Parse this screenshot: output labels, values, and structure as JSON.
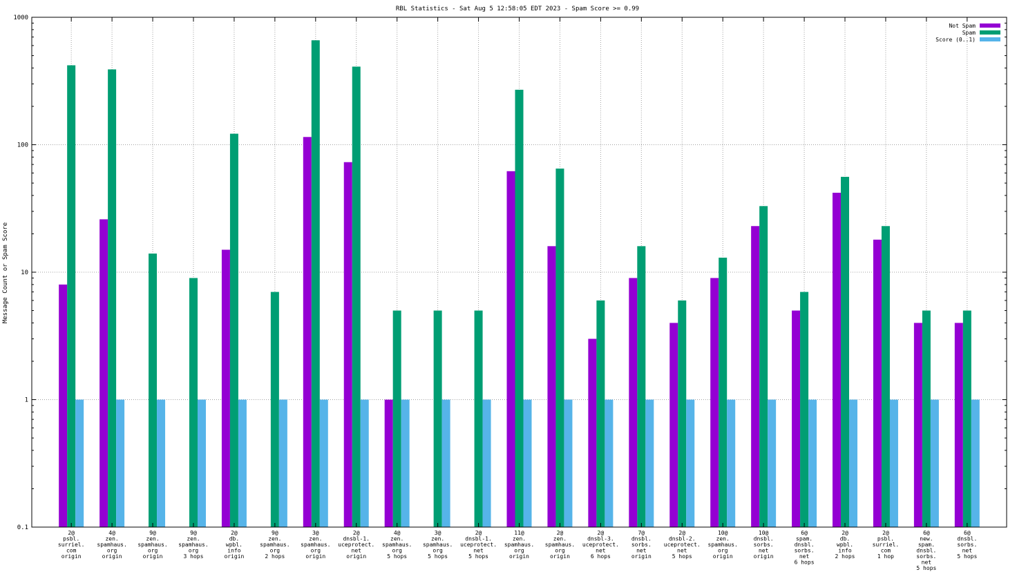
{
  "chart_data": {
    "type": "bar",
    "title": "RBL Statistics - Sat Aug  5 12:58:05 EDT 2023 - Spam Score >= 0.99",
    "xlabel": "",
    "ylabel": "Message Count or Spam Score",
    "yscale": "log",
    "ylim": [
      0.1,
      1000
    ],
    "yticks": [
      "0.1",
      "1",
      "10",
      "100",
      "1000"
    ],
    "grid": true,
    "legend_position": "top-right",
    "categories": [
      [
        "2@",
        "psbl.",
        "surriel.",
        "com",
        "origin"
      ],
      [
        "4@",
        "zen.",
        "spamhaus.",
        "org",
        "origin"
      ],
      [
        "9@",
        "zen.",
        "spamhaus.",
        "org",
        "origin"
      ],
      [
        "9@",
        "zen.",
        "spamhaus.",
        "org",
        "3 hops"
      ],
      [
        "2@",
        "db.",
        "wpbl.",
        "info",
        "origin"
      ],
      [
        "9@",
        "zen.",
        "spamhaus.",
        "org",
        "2 hops"
      ],
      [
        "3@",
        "zen.",
        "spamhaus.",
        "org",
        "origin"
      ],
      [
        "2@",
        "dnsbl-1.",
        "uceprotect.",
        "net",
        "origin"
      ],
      [
        "4@",
        "zen.",
        "spamhaus.",
        "org",
        "5 hops"
      ],
      [
        "3@",
        "zen.",
        "spamhaus.",
        "org",
        "5 hops"
      ],
      [
        "2@",
        "dnsbl-1.",
        "uceprotect.",
        "net",
        "5 hops"
      ],
      [
        "11@",
        "zen.",
        "spamhaus.",
        "org",
        "origin"
      ],
      [
        "2@",
        "zen.",
        "spamhaus.",
        "org",
        "origin"
      ],
      [
        "2@",
        "dnsbl-3.",
        "uceprotect.",
        "net",
        "6 hops"
      ],
      [
        "7@",
        "dnsbl.",
        "sorbs.",
        "net",
        "origin"
      ],
      [
        "2@",
        "dnsbl-2.",
        "uceprotect.",
        "net",
        "5 hops"
      ],
      [
        "10@",
        "zen.",
        "spamhaus.",
        "org",
        "origin"
      ],
      [
        "10@",
        "dnsbl.",
        "sorbs.",
        "net",
        "origin"
      ],
      [
        "6@",
        "spam.",
        "dnsbl.",
        "sorbs.",
        "net",
        "6 hops"
      ],
      [
        "2@",
        "db.",
        "wpbl.",
        "info",
        "2 hops"
      ],
      [
        "2@",
        "psbl.",
        "surriel.",
        "com",
        "1 hop"
      ],
      [
        "6@",
        "new.",
        "spam.",
        "dnsbl.",
        "sorbs.",
        "net",
        "5 hops"
      ],
      [
        "6@",
        "dnsbl.",
        "sorbs.",
        "net",
        "5 hops"
      ]
    ],
    "series": [
      {
        "name": "Not Spam",
        "color": "#9400d3",
        "values": [
          8,
          26,
          0,
          0,
          15,
          0,
          115,
          73,
          1,
          0,
          0,
          62,
          16,
          3,
          9,
          4,
          9,
          23,
          5,
          42,
          18,
          4,
          4
        ]
      },
      {
        "name": "Spam",
        "color": "#009e73",
        "values": [
          420,
          390,
          14,
          9,
          122,
          7,
          660,
          410,
          5,
          5,
          5,
          270,
          65,
          6,
          16,
          6,
          13,
          33,
          7,
          56,
          23,
          5,
          5
        ]
      },
      {
        "name": "Score (0..1)",
        "color": "#56b4e9",
        "values": [
          1,
          1,
          1,
          1,
          1,
          1,
          1,
          1,
          1,
          1,
          1,
          1,
          1,
          1,
          1,
          1,
          1,
          1,
          1,
          1,
          1,
          1,
          1
        ]
      }
    ]
  }
}
